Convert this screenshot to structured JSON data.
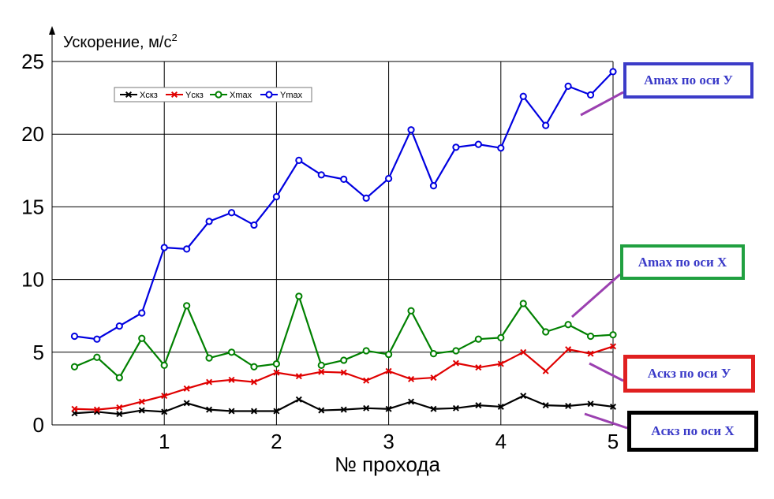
{
  "chart_data": {
    "type": "line",
    "ylabel": "Ускорение, м/с",
    "ylabel_sup": "2",
    "xlabel": "№ прохода",
    "xlim": [
      0,
      5
    ],
    "ylim": [
      0,
      25
    ],
    "xticks": [
      1,
      2,
      3,
      4,
      5
    ],
    "yticks": [
      0,
      5,
      10,
      15,
      20,
      25
    ],
    "grid": true,
    "legend_position": "top-left",
    "x": [
      0.2,
      0.4,
      0.6,
      0.8,
      1.0,
      1.2,
      1.4,
      1.6,
      1.8,
      2.0,
      2.2,
      2.4,
      2.6,
      2.8,
      3.0,
      3.2,
      3.4,
      3.6,
      3.8,
      4.0,
      4.2,
      4.4,
      4.6,
      4.8,
      5.0
    ],
    "series": [
      {
        "name": "Xскз",
        "color": "#000000",
        "marker": "x",
        "values": [
          0.8,
          0.9,
          0.75,
          1.0,
          0.9,
          1.5,
          1.05,
          0.95,
          0.95,
          0.95,
          1.75,
          1.0,
          1.05,
          1.15,
          1.1,
          1.6,
          1.1,
          1.15,
          1.35,
          1.25,
          2.0,
          1.35,
          1.3,
          1.45,
          1.25
        ]
      },
      {
        "name": "Yскз",
        "color": "#e00000",
        "marker": "x",
        "values": [
          1.1,
          1.05,
          1.2,
          1.6,
          2.0,
          2.5,
          2.95,
          3.1,
          2.95,
          3.6,
          3.35,
          3.65,
          3.6,
          3.05,
          3.7,
          3.15,
          3.25,
          4.25,
          3.95,
          4.2,
          5.0,
          3.7,
          5.2,
          4.9,
          5.4
        ]
      },
      {
        "name": "Xmax",
        "color": "#008000",
        "marker": "o",
        "values": [
          4.0,
          4.65,
          3.25,
          5.95,
          4.1,
          8.2,
          4.6,
          5.0,
          4.0,
          4.2,
          8.85,
          4.1,
          4.45,
          5.1,
          4.85,
          7.85,
          4.9,
          5.1,
          5.9,
          6.0,
          8.35,
          6.4,
          6.9,
          6.1,
          6.2
        ]
      },
      {
        "name": "Ymax",
        "color": "#0000e0",
        "marker": "o",
        "values": [
          6.1,
          5.9,
          6.8,
          7.7,
          12.2,
          12.1,
          14.0,
          14.6,
          13.75,
          15.7,
          18.2,
          17.2,
          16.9,
          15.6,
          16.95,
          20.3,
          16.45,
          19.1,
          19.3,
          19.05,
          22.6,
          20.6,
          23.3,
          22.7,
          24.3
        ]
      }
    ],
    "annotations": [
      {
        "text": "Amax по оси У",
        "border_color": "#3c3cc8"
      },
      {
        "text": "Amax по оси X",
        "border_color": "#20a040"
      },
      {
        "text": "Aскз по оси У",
        "border_color": "#e02020"
      },
      {
        "text": "Aскз по оси X",
        "border_color": "#000000"
      }
    ],
    "annotation_line_color": "#9b40b0"
  }
}
